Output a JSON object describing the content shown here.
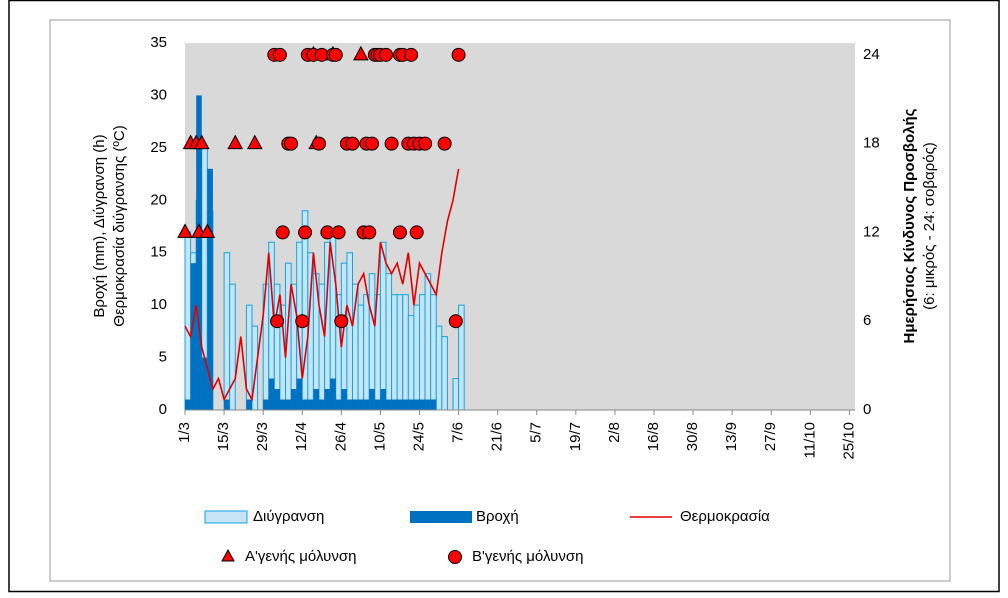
{
  "chart_data": {
    "type": "combo",
    "legend": "bottom",
    "background": "#d9d9d9",
    "grid": false,
    "ylabel": [
      "Βροχή (mm), Διύγρανση (h)",
      "Θερμοκρασία διύγρανσης (ºC)"
    ],
    "y2label": [
      "Ημερήσιος Κίνδυνος Προσβολής",
      "(6: μικρός - 24: σοβαρός)"
    ],
    "xlim": [
      "1/3",
      "27/10"
    ],
    "xticks": [
      "1/3",
      "15/3",
      "29/3",
      "12/4",
      "26/4",
      "10/5",
      "24/5",
      "7/6",
      "21/6",
      "5/7",
      "19/7",
      "2/8",
      "16/8",
      "30/8",
      "13/9",
      "27/9",
      "11/10",
      "25/10"
    ],
    "ylim": [
      0,
      35
    ],
    "yticks": [
      0,
      5,
      10,
      15,
      20,
      25,
      30,
      35
    ],
    "y2lim": [
      0,
      24.8
    ],
    "y2ticks": [
      0,
      6,
      12,
      18,
      24
    ],
    "x": [
      "1/3",
      "3/3",
      "5/3",
      "7/3",
      "9/3",
      "11/3",
      "13/3",
      "15/3",
      "17/3",
      "19/3",
      "21/3",
      "23/3",
      "25/3",
      "27/3",
      "29/3",
      "31/3",
      "2/4",
      "4/4",
      "6/4",
      "8/4",
      "10/4",
      "12/4",
      "14/4",
      "16/4",
      "18/4",
      "20/4",
      "22/4",
      "24/4",
      "26/4",
      "28/4",
      "30/4",
      "2/5",
      "4/5",
      "6/5",
      "8/5",
      "10/5",
      "12/5",
      "14/5",
      "16/5",
      "18/5",
      "20/5",
      "22/5",
      "24/5",
      "26/5",
      "28/5",
      "30/5",
      "1/6",
      "3/6",
      "5/6",
      "7/6"
    ],
    "series": [
      {
        "name": "Διύγρανση",
        "type": "bar",
        "color": "#c5e4f6",
        "stroke": "#12a5e3",
        "values": [
          17,
          15,
          20,
          25,
          19,
          0,
          0,
          15,
          12,
          0,
          0,
          10,
          8,
          0,
          12,
          16,
          12,
          10,
          14,
          12,
          16,
          19,
          15,
          13,
          12,
          16,
          17,
          11,
          14,
          15,
          12,
          10,
          11,
          13,
          11,
          16,
          13,
          11,
          11,
          11,
          9,
          10,
          11,
          13,
          11,
          8,
          7,
          0,
          3,
          10
        ]
      },
      {
        "name": "Βροχή",
        "type": "bar",
        "color": "#0070c0",
        "values": [
          1,
          14,
          30,
          5,
          23,
          0,
          0,
          1,
          0,
          0,
          0,
          1,
          0,
          0,
          1,
          3,
          2,
          1,
          1,
          2,
          3,
          1,
          1,
          2,
          1,
          2,
          3,
          1,
          2,
          1,
          1,
          1,
          1,
          2,
          1,
          2,
          1,
          1,
          1,
          1,
          1,
          1,
          1,
          1,
          1,
          0,
          0,
          0,
          0,
          0
        ]
      },
      {
        "name": "Θερμοκρασία",
        "type": "line",
        "color": "#e00000",
        "values": [
          8,
          7,
          10,
          6,
          4,
          2,
          3,
          1,
          2,
          3,
          7,
          2,
          1,
          5,
          9,
          15,
          8,
          11,
          5,
          12,
          9,
          3,
          7,
          15,
          10,
          7,
          16,
          12,
          6,
          10,
          8,
          12,
          13,
          10,
          8,
          16,
          14,
          13,
          14,
          12,
          15,
          10,
          14,
          13,
          12,
          11,
          15,
          18,
          20,
          23
        ]
      },
      {
        "name": "A'γενής μόλυνση",
        "type": "scatter",
        "marker": "triangle",
        "axis": "y2",
        "color": "#ff0000",
        "x": [
          "1/3",
          "3/3",
          "5/3",
          "6/3",
          "7/3",
          "9/3",
          "19/3",
          "26/3",
          "16/4",
          "17/4",
          "23/4",
          "3/5"
        ],
        "values": [
          12,
          18,
          18,
          12,
          18,
          12,
          18,
          18,
          24,
          18,
          24,
          24
        ]
      },
      {
        "name": "B'γενής μόλυνση",
        "type": "scatter",
        "marker": "circle",
        "axis": "y2",
        "color": "#ff0000",
        "x": [
          "2/4",
          "4/4",
          "14/4",
          "16/4",
          "19/4",
          "23/4",
          "24/4",
          "8/5",
          "9/5",
          "10/5",
          "12/5",
          "17/5",
          "18/5",
          "21/5",
          "7/6",
          "7/4",
          "8/4",
          "18/4",
          "28/4",
          "30/4",
          "5/5",
          "7/5",
          "14/5",
          "20/5",
          "22/5",
          "24/5",
          "26/5",
          "2/6",
          "5/4",
          "13/4",
          "21/4",
          "25/4",
          "4/5",
          "6/5",
          "17/5",
          "23/5",
          "3/4",
          "12/4",
          "26/4",
          "6/6"
        ],
        "values": [
          24,
          24,
          24,
          24,
          24,
          24,
          24,
          24,
          24,
          24,
          24,
          24,
          24,
          24,
          24,
          18,
          18,
          18,
          18,
          18,
          18,
          18,
          18,
          18,
          18,
          18,
          18,
          18,
          12,
          12,
          12,
          12,
          12,
          12,
          12,
          12,
          6,
          6,
          6,
          6
        ]
      }
    ]
  }
}
